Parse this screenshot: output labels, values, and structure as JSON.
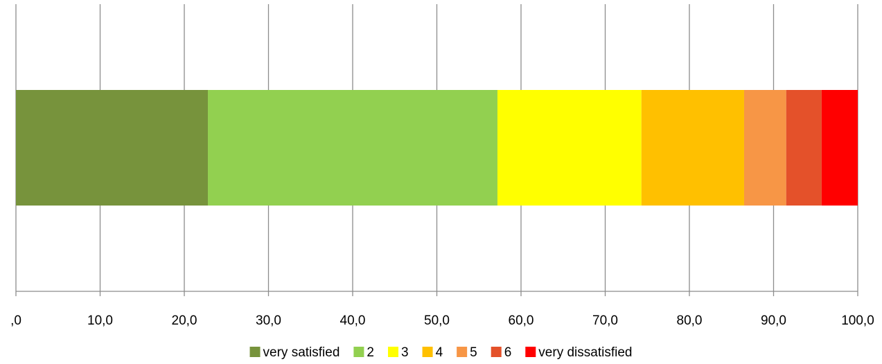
{
  "chart_data": {
    "type": "bar",
    "orientation": "horizontal",
    "stacked": true,
    "title": "",
    "xlabel": "",
    "ylabel": "",
    "xlim": [
      0,
      100
    ],
    "x_ticks": [
      ",0",
      "10,0",
      "20,0",
      "30,0",
      "40,0",
      "50,0",
      "60,0",
      "70,0",
      "80,0",
      "90,0",
      "100,0"
    ],
    "grid": "vertical",
    "legend_position": "bottom",
    "series": [
      {
        "name": "very satisfied",
        "value": 22.8,
        "color": "#77933C"
      },
      {
        "name": "2",
        "value": 34.4,
        "color": "#92D050"
      },
      {
        "name": "3",
        "value": 17.1,
        "color": "#FFFF00"
      },
      {
        "name": "4",
        "value": 12.2,
        "color": "#FFC000"
      },
      {
        "name": "5",
        "value": 5.0,
        "color": "#F79646"
      },
      {
        "name": "6",
        "value": 4.2,
        "color": "#E4512A"
      },
      {
        "name": "very dissatisfied",
        "value": 4.3,
        "color": "#FF0000"
      }
    ]
  }
}
